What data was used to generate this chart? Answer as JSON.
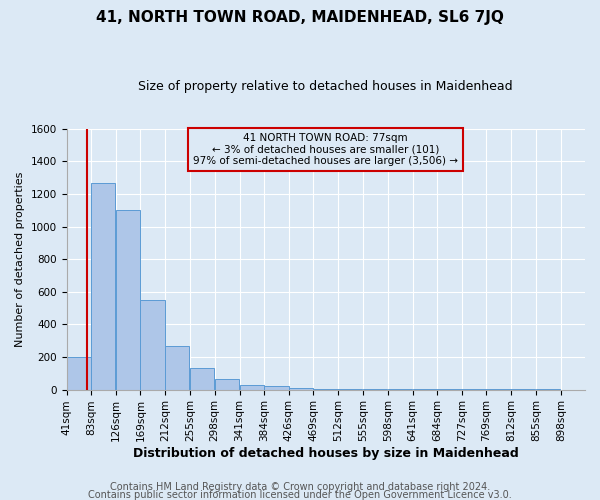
{
  "title": "41, NORTH TOWN ROAD, MAIDENHEAD, SL6 7JQ",
  "subtitle": "Size of property relative to detached houses in Maidenhead",
  "xlabel": "Distribution of detached houses by size in Maidenhead",
  "ylabel": "Number of detached properties",
  "annotation_line1": "41 NORTH TOWN ROAD: 77sqm",
  "annotation_line2": "← 3% of detached houses are smaller (101)",
  "annotation_line3": "97% of semi-detached houses are larger (3,506) →",
  "footer_line1": "Contains HM Land Registry data © Crown copyright and database right 2024.",
  "footer_line2": "Contains public sector information licensed under the Open Government Licence v3.0.",
  "property_size": 77,
  "bin_edges": [
    41,
    83,
    126,
    169,
    212,
    255,
    298,
    341,
    384,
    426,
    469,
    512,
    555,
    598,
    641,
    684,
    727,
    769,
    812,
    855,
    898
  ],
  "bin_heights": [
    200,
    1270,
    1100,
    550,
    265,
    130,
    65,
    30,
    20,
    10,
    5,
    5,
    2,
    5,
    2,
    2,
    2,
    2,
    2,
    2
  ],
  "bar_color": "#aec6e8",
  "bar_edge_color": "#5b9bd5",
  "vline_color": "#cc0000",
  "annotation_box_color": "#cc0000",
  "background_color": "#dce9f5",
  "grid_color": "#ffffff",
  "ylim": [
    0,
    1600
  ],
  "yticks": [
    0,
    200,
    400,
    600,
    800,
    1000,
    1200,
    1400,
    1600
  ],
  "title_fontsize": 11,
  "subtitle_fontsize": 9,
  "xlabel_fontsize": 9,
  "ylabel_fontsize": 8,
  "tick_fontsize": 7.5,
  "footer_fontsize": 7,
  "annotation_fontsize": 7.5
}
